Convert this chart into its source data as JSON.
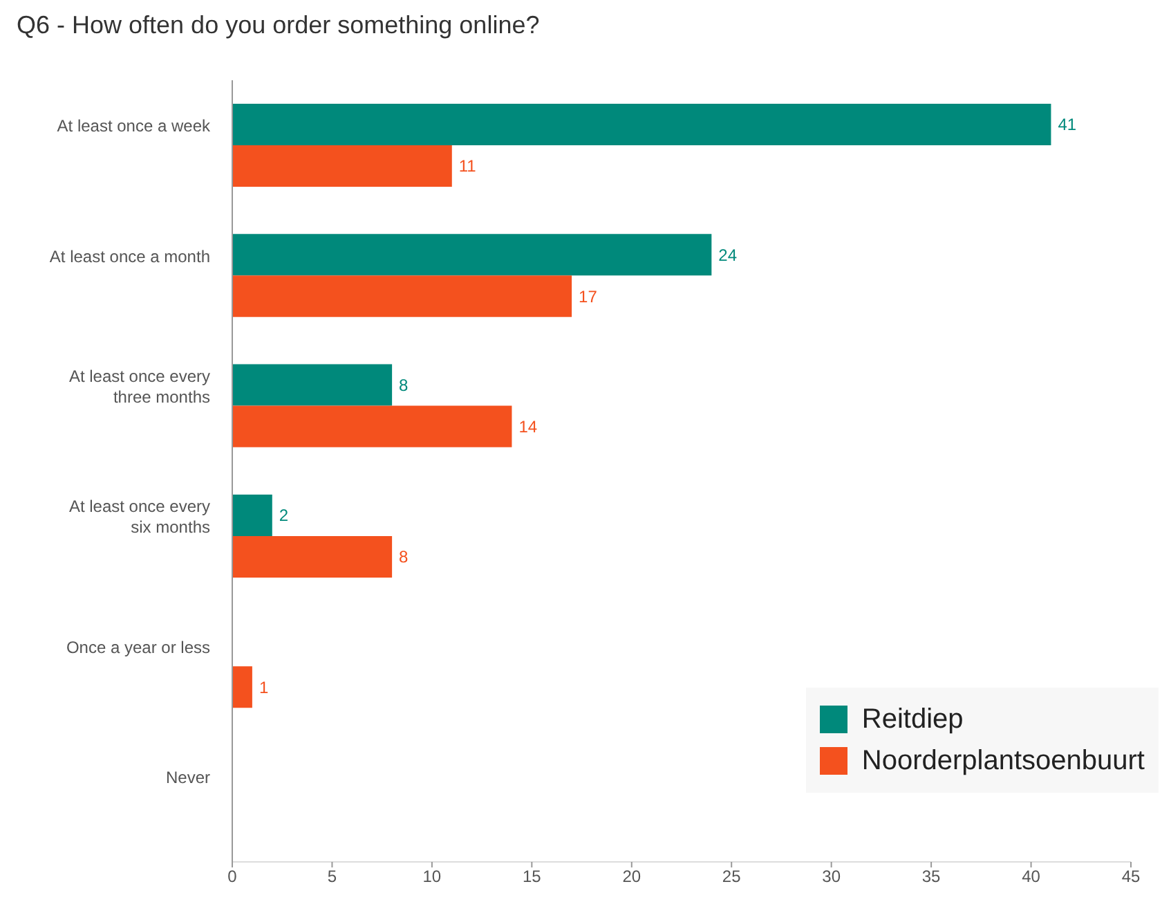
{
  "chart_data": {
    "type": "bar",
    "orientation": "horizontal",
    "title": "Q6 - How often do you order something online?",
    "categories": [
      "At least once a week",
      "At least once a month",
      "At least once every three months",
      "At least once every six months",
      "Once a year or less",
      "Never"
    ],
    "series": [
      {
        "name": "Reitdiep",
        "color": "#00897b",
        "values": [
          41,
          24,
          8,
          2,
          null,
          null
        ]
      },
      {
        "name": "Noorderplantsoenbuurt",
        "color": "#f4511e",
        "values": [
          11,
          17,
          14,
          8,
          1,
          null
        ]
      }
    ],
    "xlim": [
      0,
      45
    ],
    "xticks": [
      0,
      5,
      10,
      15,
      20,
      25,
      30,
      35,
      40,
      45
    ],
    "data_labels": true,
    "legend": "bottom right"
  }
}
